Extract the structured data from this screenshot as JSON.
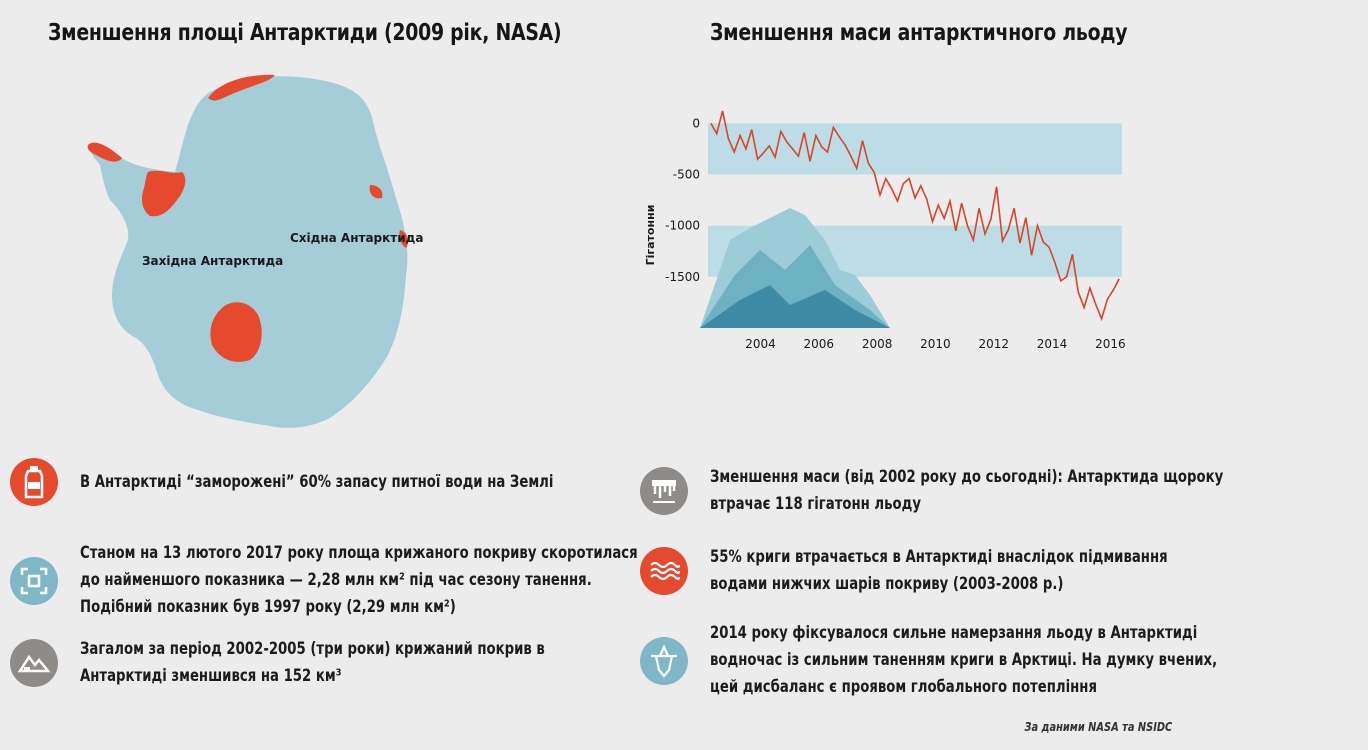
{
  "title_left": "Зменшення площі Антарктиди (2009 рік, NASA)",
  "title_right": "Зменшення маси антарктичного льоду",
  "map": {
    "label_west": "Західна Антарктида",
    "label_east": "Східна Антарктида",
    "ice_color": "#a5cdd8",
    "loss_color": "#e64a2e"
  },
  "chart_data": {
    "type": "line",
    "ylabel": "Гігатонни",
    "xlabel": "",
    "xlim": [
      2002.2,
      2016.4
    ],
    "ylim": [
      -2000,
      150
    ],
    "x_ticks": [
      "2004",
      "2006",
      "2008",
      "2010",
      "2012",
      "2014",
      "2016"
    ],
    "y_ticks": [
      "0",
      "-500",
      "-1000",
      "-1500"
    ],
    "line_color": "#d9442a",
    "band_color": "#bcdde6",
    "series": [
      {
        "x": [
          2002.3,
          2002.5,
          2002.7,
          2002.9,
          2003.1,
          2003.3,
          2003.5,
          2003.7,
          2003.9,
          2004.1,
          2004.3,
          2004.5,
          2004.7,
          2004.9,
          2005.1,
          2005.3,
          2005.5,
          2005.7,
          2005.9,
          2006.1,
          2006.3,
          2006.5,
          2006.7,
          2006.9,
          2007.1,
          2007.3,
          2007.5,
          2007.7,
          2007.9,
          2008.1,
          2008.3,
          2008.5,
          2008.7,
          2008.9,
          2009.1,
          2009.3,
          2009.5,
          2009.7,
          2009.9,
          2010.1,
          2010.3,
          2010.5,
          2010.7,
          2010.9,
          2011.1,
          2011.3,
          2011.5,
          2011.7,
          2011.9,
          2012.1,
          2012.3,
          2012.5,
          2012.7,
          2012.9,
          2013.1,
          2013.3,
          2013.5,
          2013.7,
          2013.9,
          2014.1,
          2014.3,
          2014.5,
          2014.7,
          2014.9,
          2015.1,
          2015.3,
          2015.5,
          2015.7,
          2015.9,
          2016.1,
          2016.3
        ],
        "y": [
          0,
          -100,
          120,
          -150,
          -280,
          -120,
          -250,
          -60,
          -350,
          -290,
          -220,
          -330,
          -80,
          -180,
          -250,
          -320,
          -90,
          -370,
          -120,
          -230,
          -280,
          -40,
          -130,
          -210,
          -320,
          -440,
          -170,
          -390,
          -480,
          -700,
          -540,
          -640,
          -760,
          -590,
          -540,
          -730,
          -610,
          -740,
          -960,
          -800,
          -930,
          -760,
          -1050,
          -780,
          -1000,
          -1140,
          -830,
          -1080,
          -940,
          -620,
          -1150,
          -1040,
          -830,
          -1170,
          -920,
          -1290,
          -1000,
          -1160,
          -1210,
          -1360,
          -1540,
          -1500,
          -1280,
          -1650,
          -1800,
          -1610,
          -1770,
          -1910,
          -1720,
          -1630,
          -1520
        ]
      }
    ],
    "bands": [
      [
        -500,
        0
      ],
      [
        -1500,
        -1000
      ]
    ]
  },
  "facts_left": [
    {
      "icon": "water-bottle-icon",
      "color": "#e64a2e",
      "lines": [
        "В Антарктиді “заморожені” 60% запасу питної води на Землі"
      ]
    },
    {
      "icon": "area-frame-icon",
      "color": "#7fb7c6",
      "lines": [
        "Станом на 13 лютого 2017 року площа крижаного покриву скоротилася",
        "до найменшого показника — 2,28 млн км² під час сезону танення.",
        "Подібний показник був 1997 року (2,29 млн км²)"
      ]
    },
    {
      "icon": "mountain-ice-icon",
      "color": "#8f8b88",
      "lines": [
        "Загалом за період 2002-2005 (три роки) крижаний покрив в",
        "Антарктиді зменшився на 152 км³"
      ]
    }
  ],
  "facts_right": [
    {
      "icon": "melting-ice-icon",
      "color": "#8f8b88",
      "lines": [
        "Зменшення маси (від 2002 року до сьогодні): Антарктида щороку",
        "втрачає 118 гігатонн льоду"
      ]
    },
    {
      "icon": "waves-icon",
      "color": "#e64a2e",
      "lines": [
        "55% криги втрачається в Антарктиді внаслідок підмивання",
        "водами нижчих шарів покриву (2003-2008 р.)"
      ]
    },
    {
      "icon": "iceberg-icon",
      "color": "#7fb7c6",
      "lines": [
        "2014 року фіксувалося сильне намерзання льоду в Антарктиді",
        "водночас із сильним таненням криги в Арктиці. На думку вчених,",
        "цей дисбаланс є проявом глобального потепління"
      ]
    }
  ],
  "source": "За даними NASA та NSIDC"
}
